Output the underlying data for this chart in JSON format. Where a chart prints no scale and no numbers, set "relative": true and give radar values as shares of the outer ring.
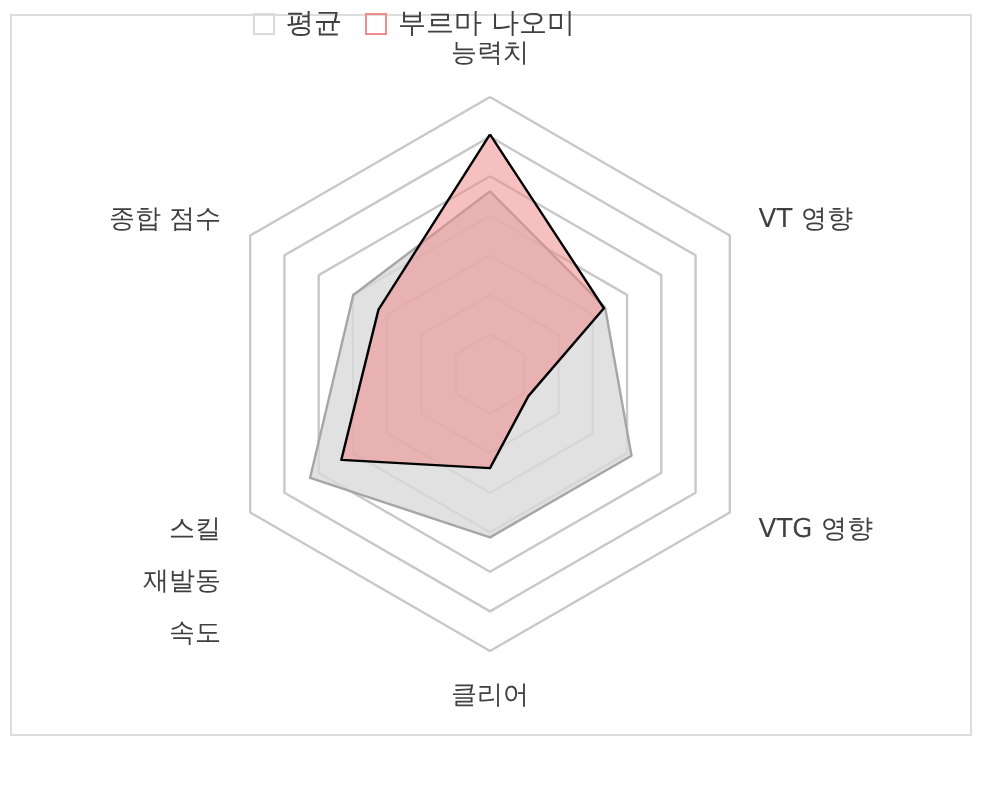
{
  "chart_data": {
    "type": "radar",
    "relative": true,
    "legend": "top",
    "grid": true,
    "marker": "none",
    "categories": [
      "능력치",
      "VT 영향",
      "VTG 영향",
      "클리어",
      "스킬 재발동 속도",
      "종합 점수"
    ],
    "series": [
      {
        "name": "평균",
        "color": "#d9d9d9",
        "values": [
          0.66,
          0.48,
          0.59,
          0.59,
          0.75,
          0.57
        ]
      },
      {
        "name": "부르마 나오미",
        "color": "#f08c8c",
        "values": [
          0.865,
          0.475,
          0.16,
          0.34,
          0.62,
          0.465
        ]
      }
    ]
  }
}
